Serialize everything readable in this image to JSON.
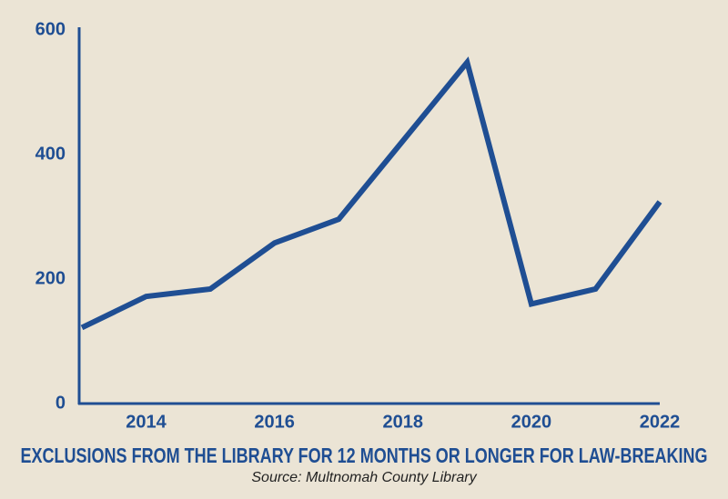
{
  "chart_data": {
    "type": "line",
    "title": "EXCLUSIONS FROM THE LIBRARY FOR 12 MONTHS OR LONGER FOR LAW-BREAKING",
    "source": "Source: Multnomah County Library",
    "x": [
      2013,
      2014,
      2015,
      2016,
      2017,
      2018,
      2019,
      2020,
      2021,
      2022
    ],
    "values": [
      122,
      172,
      184,
      258,
      296,
      422,
      548,
      160,
      184,
      324
    ],
    "color": "#1f4e93",
    "xlim": [
      2013,
      2022
    ],
    "xticks": [
      2014,
      2016,
      2018,
      2020,
      2022
    ],
    "ylim": [
      0,
      600
    ],
    "yticks": [
      0,
      200,
      400,
      600
    ],
    "grid": false
  }
}
